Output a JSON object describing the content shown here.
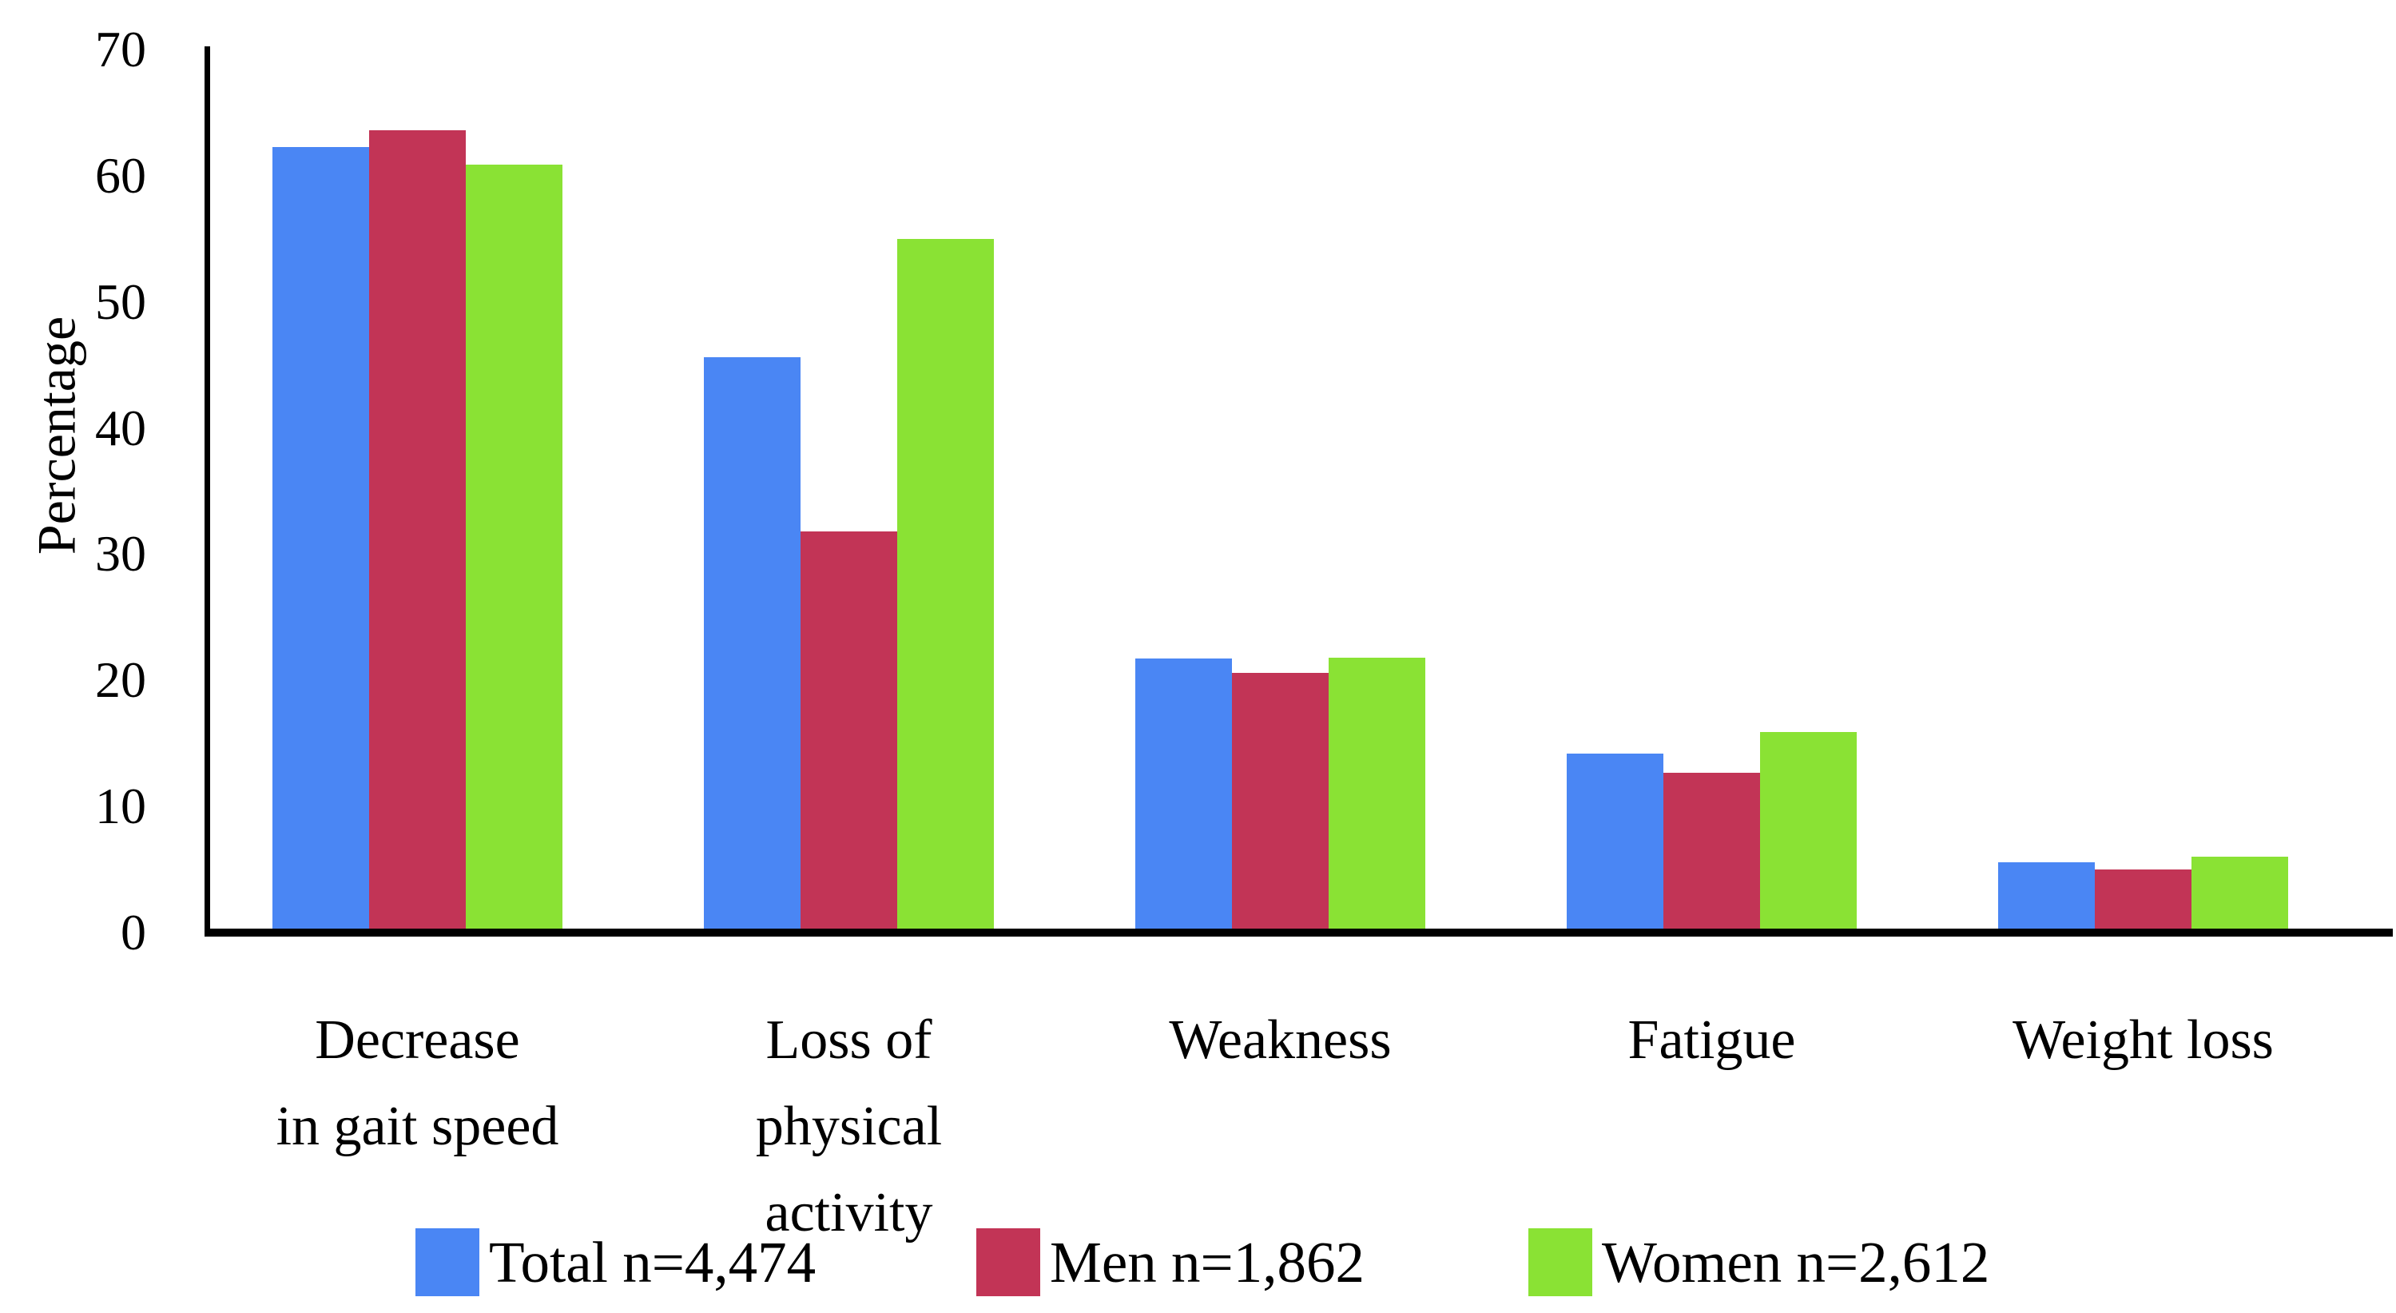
{
  "chart_data": {
    "type": "bar",
    "title": "",
    "ylabel": "Percentage",
    "xlabel": "",
    "ylim": [
      0,
      70
    ],
    "yticks": [
      0,
      10,
      20,
      30,
      40,
      50,
      60,
      70
    ],
    "grid": false,
    "legend_position": "bottom",
    "axis_color": "#000000",
    "background_color": "#ffffff",
    "categories": [
      "Decrease in gait speed",
      "Loss of physical activity",
      "Weakness",
      "Fatigue",
      "Weight loss"
    ],
    "category_label_lines": [
      [
        "Decrease",
        "in gait speed"
      ],
      [
        "Loss of",
        "physical",
        "activity"
      ],
      [
        "Weakness"
      ],
      [
        "Fatigue"
      ],
      [
        "Weight loss"
      ]
    ],
    "series": [
      {
        "name": "Total n=4,474",
        "color": "#4a86f4",
        "values": [
          62.3,
          45.6,
          21.7,
          14.2,
          5.6
        ]
      },
      {
        "name": "Men n=1,862",
        "color": "#c23456",
        "values": [
          63.6,
          31.8,
          20.6,
          12.7,
          5.0
        ]
      },
      {
        "name": "Women n=2,612",
        "color": "#8ae234",
        "values": [
          60.9,
          55.0,
          21.8,
          15.9,
          6.0
        ]
      }
    ]
  }
}
